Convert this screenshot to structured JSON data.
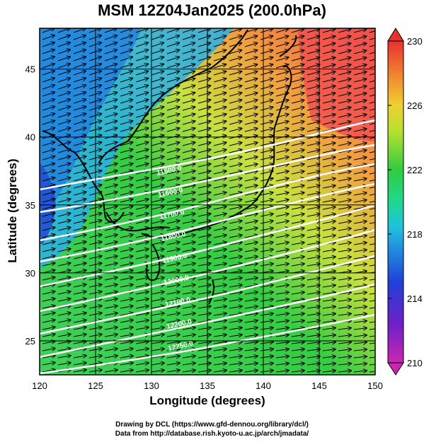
{
  "title": "MSM 12Z04Jan2025 (200.0hPa)",
  "x_axis": {
    "label": "Longitude (degrees)",
    "ticks": [
      "120",
      "125",
      "130",
      "135",
      "140",
      "145",
      "150"
    ],
    "values": [
      120,
      125,
      130,
      135,
      140,
      145,
      150
    ]
  },
  "y_axis": {
    "label": "Latitude  (degrees)",
    "ticks": [
      "25",
      "30",
      "35",
      "40",
      "45"
    ],
    "values": [
      25,
      30,
      35,
      40,
      45
    ]
  },
  "colorbar": {
    "ticks": [
      "210",
      "214",
      "218",
      "222",
      "226",
      "230"
    ],
    "values": [
      210,
      214,
      218,
      222,
      226,
      230
    ]
  },
  "contour_labels": [
    "11500.0",
    "11600.0",
    "11700.0",
    "11800.0",
    "11900.0",
    "12000.0",
    "12100.0",
    "12200.0",
    "12250.0"
  ],
  "credits": {
    "line1": "Drawing by DCL (https://www.gfd-dennou.org/library/dcl/)",
    "line2": "Data from http://database.rish.kyoto-u.ac.jp/arch/jmadata/"
  },
  "colors": {
    "cold": "#1a3fd6",
    "cyan": "#18d8c8",
    "green": "#22c83a",
    "yellow": "#d8e030",
    "orange": "#f0a030",
    "red": "#f04040",
    "magenta": "#d040c0"
  }
}
